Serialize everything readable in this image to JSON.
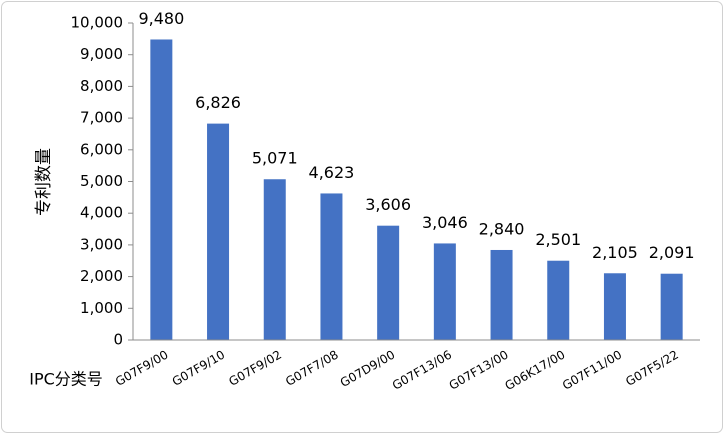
{
  "chart_data": {
    "type": "bar",
    "ylabel": "专利数量",
    "xlabel": "IPC分类号",
    "categories": [
      "G07F9/00",
      "G07F9/10",
      "G07F9/02",
      "G07F7/08",
      "G07D9/00",
      "G07F13/06",
      "G07F13/00",
      "G06K17/00",
      "G07F11/00",
      "G07F5/22"
    ],
    "values": [
      9480,
      6826,
      5071,
      4623,
      3606,
      3046,
      2840,
      2501,
      2105,
      2091
    ],
    "value_labels": [
      "9,480",
      "6,826",
      "5,071",
      "4,623",
      "3,606",
      "3,046",
      "2,840",
      "2,501",
      "2,105",
      "2,091"
    ],
    "color": "#4472c4",
    "ylim": [
      0,
      10000
    ],
    "yticks": [
      0,
      {
        "value": 1000,
        "label": "1,000"
      },
      {
        "value": 2000,
        "label": "2,000"
      },
      {
        "value": 3000,
        "label": "3,000"
      },
      {
        "value": 4000,
        "label": "4,000"
      },
      {
        "value": 5000,
        "label": "5,000"
      },
      {
        "value": 6000,
        "label": "6,000"
      },
      {
        "value": 7000,
        "label": "7,000"
      },
      {
        "value": 8000,
        "label": "8,000"
      },
      {
        "value": 9000,
        "label": "9,000"
      },
      {
        "value": 10000,
        "label": "10,000"
      }
    ],
    "grid": false
  }
}
